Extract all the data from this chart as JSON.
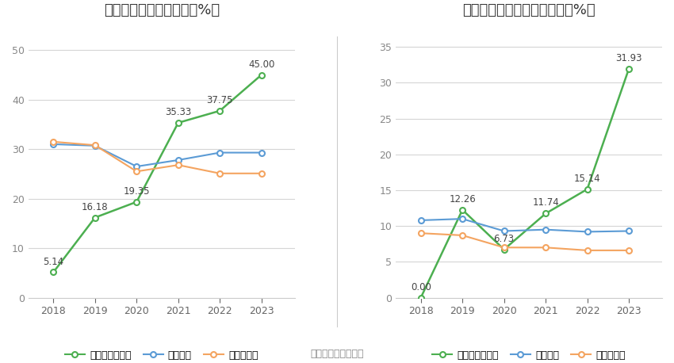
{
  "left_title": "近年来资产负债率情况（%）",
  "right_title": "近年来有息资产负债率情况（%）",
  "years": [
    2018,
    2019,
    2020,
    2021,
    2022,
    2023
  ],
  "left": {
    "company": [
      5.14,
      16.18,
      19.35,
      35.33,
      37.75,
      45.0
    ],
    "industry_mean": [
      31.0,
      30.7,
      26.5,
      27.8,
      29.3,
      29.3
    ],
    "industry_median": [
      31.5,
      30.8,
      25.5,
      26.8,
      25.1,
      25.1
    ],
    "company_label": "公司资产负债率",
    "mean_label": "行业均值",
    "median_label": "行业中位数",
    "ylim": [
      0,
      55
    ],
    "yticks": [
      0,
      10,
      20,
      30,
      40,
      50
    ]
  },
  "right": {
    "company": [
      0.0,
      12.26,
      6.73,
      11.74,
      15.14,
      31.93
    ],
    "industry_mean": [
      10.8,
      11.0,
      9.3,
      9.5,
      9.2,
      9.3
    ],
    "industry_median": [
      9.0,
      8.7,
      7.0,
      7.0,
      6.6,
      6.6
    ],
    "company_label": "有息资产负债率",
    "mean_label": "行业均值",
    "median_label": "行业中位数",
    "ylim": [
      0,
      38
    ],
    "yticks": [
      0,
      5,
      10,
      15,
      20,
      25,
      30,
      35
    ]
  },
  "colors": {
    "company": "#4caf50",
    "industry_mean": "#5b9bd5",
    "industry_median": "#f4a460"
  },
  "source_text": "数据来源：恒生聚源",
  "background_color": "#ffffff",
  "grid_color": "#d5d5d5",
  "title_fontsize": 13,
  "label_fontsize": 9,
  "tick_fontsize": 9,
  "annotation_fontsize": 8.5
}
